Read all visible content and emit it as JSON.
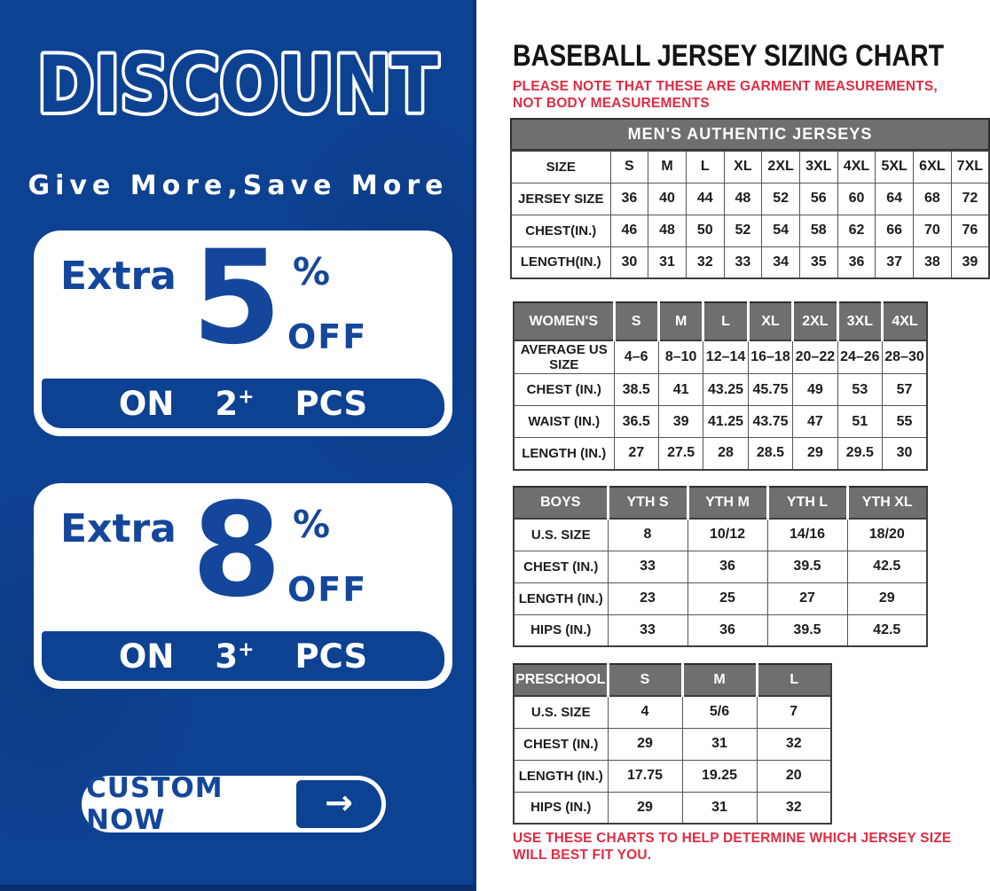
{
  "colors": {
    "banner_blue": "#0d4192",
    "accent_blue": "#14479b",
    "note_red": "#e02b43",
    "header_gray": "#6f6f6f"
  },
  "banner": {
    "title": "DISCOUNT",
    "subtitle": "Give More,Save More",
    "offers": [
      {
        "prefix": "Extra",
        "percent": "5",
        "percent_sign": "%",
        "off_label": "OFF",
        "on_label": "ON",
        "qty": "2",
        "plus": "+",
        "unit": "PCS"
      },
      {
        "prefix": "Extra",
        "percent": "8",
        "percent_sign": "%",
        "off_label": "OFF",
        "on_label": "ON",
        "qty": "3",
        "plus": "+",
        "unit": "PCS"
      }
    ],
    "button_label": "CUSTOM NOW",
    "button_arrow": "→"
  },
  "sizing": {
    "title": "BASEBALL JERSEY SIZING CHART",
    "note_top": "PLEASE NOTE THAT THESE ARE GARMENT MEASUREMENTS, NOT BODY MEASUREMENTS",
    "note_bottom": "USE THESE CHARTS TO HELP DETERMINE WHICH JERSEY SIZE WILL BEST FIT YOU.",
    "tables": {
      "men": {
        "banner": "MEN'S AUTHENTIC JERSEYS",
        "rows": [
          [
            "SIZE",
            "S",
            "M",
            "L",
            "XL",
            "2XL",
            "3XL",
            "4XL",
            "5XL",
            "6XL",
            "7XL"
          ],
          [
            "JERSEY SIZE",
            "36",
            "40",
            "44",
            "48",
            "52",
            "56",
            "60",
            "64",
            "68",
            "72"
          ],
          [
            "CHEST(IN.)",
            "46",
            "48",
            "50",
            "52",
            "54",
            "58",
            "62",
            "66",
            "70",
            "76"
          ],
          [
            "LENGTH(IN.)",
            "30",
            "31",
            "32",
            "33",
            "34",
            "35",
            "36",
            "37",
            "38",
            "39"
          ]
        ]
      },
      "women": {
        "header_row": [
          "WOMEN'S",
          "S",
          "M",
          "L",
          "XL",
          "2XL",
          "3XL",
          "4XL"
        ],
        "rows": [
          [
            "AVERAGE US SIZE",
            "4–6",
            "8–10",
            "12–14",
            "16–18",
            "20–22",
            "24–26",
            "28–30"
          ],
          [
            "CHEST (IN.)",
            "38.5",
            "41",
            "43.25",
            "45.75",
            "49",
            "53",
            "57"
          ],
          [
            "WAIST (IN.)",
            "36.5",
            "39",
            "41.25",
            "43.75",
            "47",
            "51",
            "55"
          ],
          [
            "LENGTH (IN.)",
            "27",
            "27.5",
            "28",
            "28.5",
            "29",
            "29.5",
            "30"
          ]
        ]
      },
      "boys": {
        "header_row": [
          "BOYS",
          "YTH S",
          "YTH M",
          "YTH L",
          "YTH XL"
        ],
        "rows": [
          [
            "U.S. SIZE",
            "8",
            "10/12",
            "14/16",
            "18/20"
          ],
          [
            "CHEST (IN.)",
            "33",
            "36",
            "39.5",
            "42.5"
          ],
          [
            "LENGTH (IN.)",
            "23",
            "25",
            "27",
            "29"
          ],
          [
            "HIPS (IN.)",
            "33",
            "36",
            "39.5",
            "42.5"
          ]
        ]
      },
      "preschool": {
        "header_row": [
          "PRESCHOOL",
          "S",
          "M",
          "L"
        ],
        "rows": [
          [
            "U.S. SIZE",
            "4",
            "5/6",
            "7"
          ],
          [
            "CHEST (IN.)",
            "29",
            "31",
            "32"
          ],
          [
            "LENGTH (IN.)",
            "17.75",
            "19.25",
            "20"
          ],
          [
            "HIPS (IN.)",
            "29",
            "31",
            "32"
          ]
        ]
      }
    }
  }
}
